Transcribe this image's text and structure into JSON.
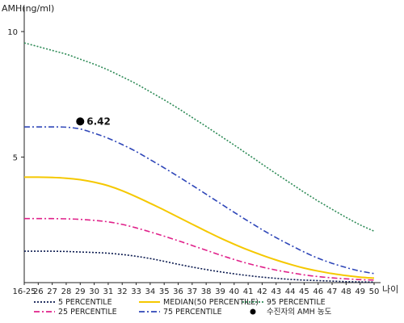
{
  "chart_data": {
    "type": "line",
    "ylabel": "AMH(ng/ml)",
    "xlabel": "나이",
    "ylim": [
      0,
      11
    ],
    "yticks": [
      5,
      10
    ],
    "categories": [
      "16-25",
      "26",
      "27",
      "28",
      "29",
      "30",
      "31",
      "32",
      "33",
      "34",
      "35",
      "36",
      "37",
      "38",
      "39",
      "40",
      "41",
      "42",
      "43",
      "44",
      "45",
      "46",
      "47",
      "48",
      "49",
      "50"
    ],
    "series": [
      {
        "name": "5 PERCENTILE",
        "color": "#0b1a4f",
        "dash": "2,2",
        "values": [
          1.25,
          1.25,
          1.25,
          1.24,
          1.22,
          1.2,
          1.17,
          1.12,
          1.05,
          0.96,
          0.85,
          0.73,
          0.62,
          0.52,
          0.43,
          0.35,
          0.28,
          0.22,
          0.17,
          0.13,
          0.1,
          0.08,
          0.06,
          0.04,
          0.03,
          0.02
        ]
      },
      {
        "name": "25 PERCENTILE",
        "color": "#e0218a",
        "dash": "7,3,2,3",
        "values": [
          2.55,
          2.55,
          2.55,
          2.54,
          2.52,
          2.48,
          2.42,
          2.32,
          2.18,
          2.02,
          1.85,
          1.67,
          1.48,
          1.29,
          1.1,
          0.92,
          0.76,
          0.62,
          0.5,
          0.4,
          0.31,
          0.24,
          0.19,
          0.15,
          0.12,
          0.1
        ]
      },
      {
        "name": "MEDIAN(50 PERCENTILE)",
        "color": "#f5c800",
        "dash": "",
        "values": [
          4.2,
          4.2,
          4.19,
          4.16,
          4.1,
          4.0,
          3.86,
          3.66,
          3.42,
          3.16,
          2.89,
          2.61,
          2.33,
          2.05,
          1.78,
          1.53,
          1.3,
          1.09,
          0.9,
          0.73,
          0.58,
          0.46,
          0.36,
          0.28,
          0.22,
          0.18
        ]
      },
      {
        "name": "75 PERCENTILE",
        "color": "#2e46b8",
        "dash": "7,3,2,3",
        "values": [
          6.2,
          6.2,
          6.2,
          6.19,
          6.12,
          5.95,
          5.75,
          5.5,
          5.22,
          4.9,
          4.57,
          4.23,
          3.88,
          3.52,
          3.16,
          2.8,
          2.45,
          2.11,
          1.79,
          1.5,
          1.22,
          0.97,
          0.77,
          0.6,
          0.46,
          0.36
        ]
      },
      {
        "name": "95 PERCENTILE",
        "color": "#2e8b57",
        "dash": "2,2",
        "values": [
          9.55,
          9.4,
          9.25,
          9.1,
          8.9,
          8.7,
          8.47,
          8.2,
          7.92,
          7.6,
          7.28,
          6.94,
          6.58,
          6.22,
          5.85,
          5.48,
          5.1,
          4.72,
          4.34,
          3.97,
          3.6,
          3.25,
          2.92,
          2.6,
          2.3,
          2.05
        ]
      }
    ],
    "point": {
      "x": "29",
      "y": 6.42,
      "label": "6.42",
      "legend": "수진자의 AMH 농도"
    },
    "grid": false,
    "legend_position": "bottom"
  }
}
